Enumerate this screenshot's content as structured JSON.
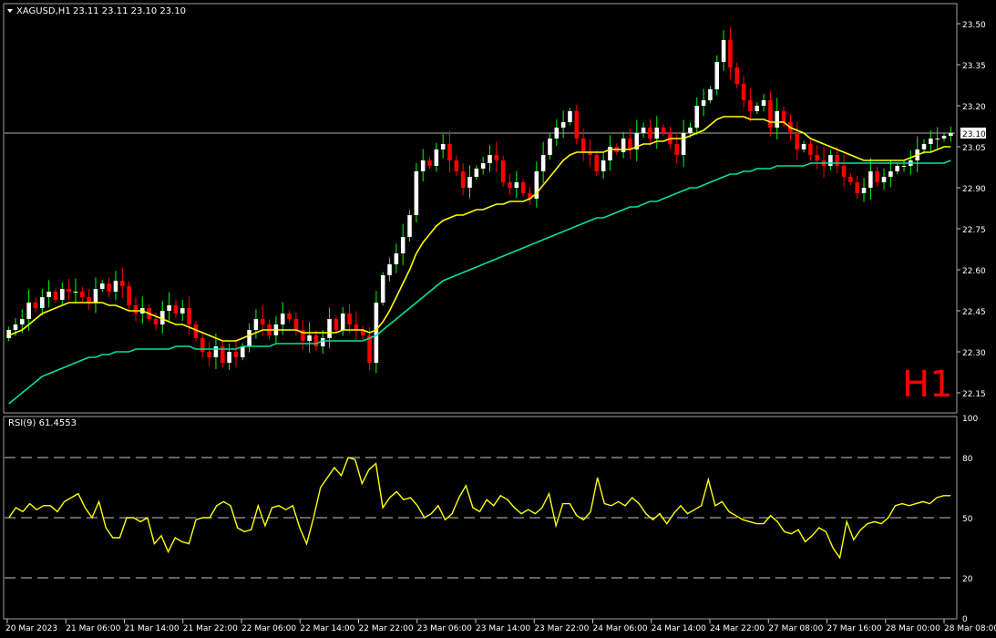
{
  "header": {
    "symbol": "XAGUSD,H1",
    "ohlc": "23.11 23.11 23.10 23.10",
    "timeframe_badge": "H1"
  },
  "rsi_panel": {
    "label": "RSI(9) 61.4553"
  },
  "colors": {
    "background": "#000000",
    "bull_candle": "#ffffff",
    "bear_candle": "#ff0000",
    "wick_bull": "#00ff00",
    "wick_bear": "#ff0000",
    "ma_fast": "#ffff00",
    "ma_slow": "#00e0a0",
    "rsi_line": "#ffff00",
    "axis": "#c0c0c0",
    "badge": "#ff0000"
  },
  "chart_data": [
    {
      "type": "candlestick",
      "title": "XAGUSD,H1",
      "price_current": "23.10",
      "ylim": [
        22.08,
        23.57
      ],
      "y_ticks": [
        "23.50",
        "23.35",
        "23.20",
        "23.05",
        "22.90",
        "22.75",
        "22.60",
        "22.45",
        "22.30",
        "22.15"
      ],
      "y_tick_values": [
        23.5,
        23.35,
        23.2,
        23.05,
        22.9,
        22.75,
        22.6,
        22.45,
        22.3,
        22.15
      ],
      "x_ticks": [
        "20 Mar 2023",
        "21 Mar 06:00",
        "21 Mar 14:00",
        "21 Mar 22:00",
        "22 Mar 06:00",
        "22 Mar 14:00",
        "22 Mar 22:00",
        "23 Mar 06:00",
        "23 Mar 14:00",
        "23 Mar 22:00",
        "24 Mar 06:00",
        "24 Mar 14:00",
        "24 Mar 22:00",
        "27 Mar 08:00",
        "27 Mar 16:00",
        "28 Mar 00:00",
        "28 Mar 08:00"
      ],
      "close_series": [
        22.38,
        22.4,
        22.42,
        22.48,
        22.46,
        22.5,
        22.52,
        22.49,
        22.53,
        22.52,
        22.52,
        22.5,
        22.48,
        22.53,
        22.55,
        22.52,
        22.56,
        22.54,
        22.47,
        22.44,
        22.46,
        22.42,
        22.4,
        22.45,
        22.47,
        22.44,
        22.46,
        22.4,
        22.35,
        22.3,
        22.28,
        22.32,
        22.26,
        22.3,
        22.28,
        22.32,
        22.38,
        22.42,
        22.4,
        22.36,
        22.4,
        22.44,
        22.42,
        22.38,
        22.34,
        22.36,
        22.32,
        22.35,
        22.42,
        22.38,
        22.44,
        22.4,
        22.38,
        22.36,
        22.26,
        22.48,
        22.58,
        22.62,
        22.66,
        22.72,
        22.8,
        22.96,
        23.0,
        22.98,
        23.04,
        23.06,
        23.0,
        22.96,
        22.9,
        22.94,
        22.97,
        22.99,
        23.02,
        23.0,
        22.92,
        22.9,
        22.92,
        22.88,
        22.86,
        22.96,
        23.02,
        23.08,
        23.12,
        23.14,
        23.18,
        23.08,
        23.03,
        23.02,
        22.96,
        23.0,
        23.05,
        23.03,
        23.08,
        23.04,
        23.1,
        23.12,
        23.08,
        23.12,
        23.1,
        23.06,
        23.02,
        23.1,
        23.12,
        23.2,
        23.22,
        23.26,
        23.36,
        23.44,
        23.34,
        23.28,
        23.22,
        23.18,
        23.2,
        23.22,
        23.12,
        23.18,
        23.14,
        23.1,
        23.04,
        23.06,
        23.02,
        23.0,
        22.98,
        23.02,
        22.98,
        22.94,
        22.92,
        22.88,
        22.9,
        22.96,
        22.92,
        22.94,
        22.96,
        22.98,
        22.98,
        23.0,
        23.04,
        23.06,
        23.08,
        23.08,
        23.09,
        23.1
      ],
      "ma_fast_series": [
        22.36,
        22.37,
        22.38,
        22.4,
        22.42,
        22.44,
        22.45,
        22.46,
        22.47,
        22.48,
        22.48,
        22.48,
        22.48,
        22.48,
        22.48,
        22.47,
        22.47,
        22.46,
        22.45,
        22.45,
        22.45,
        22.44,
        22.43,
        22.42,
        22.41,
        22.4,
        22.4,
        22.39,
        22.38,
        22.37,
        22.36,
        22.35,
        22.34,
        22.34,
        22.34,
        22.35,
        22.36,
        22.37,
        22.38,
        22.38,
        22.38,
        22.38,
        22.38,
        22.38,
        22.37,
        22.37,
        22.37,
        22.37,
        22.37,
        22.37,
        22.38,
        22.38,
        22.38,
        22.38,
        22.37,
        22.38,
        22.41,
        22.45,
        22.5,
        22.55,
        22.6,
        22.66,
        22.7,
        22.73,
        22.76,
        22.78,
        22.79,
        22.8,
        22.8,
        22.81,
        22.82,
        22.82,
        22.83,
        22.84,
        22.84,
        22.85,
        22.85,
        22.85,
        22.86,
        22.88,
        22.91,
        22.94,
        22.97,
        23.0,
        23.02,
        23.03,
        23.03,
        23.03,
        23.03,
        23.03,
        23.04,
        23.04,
        23.04,
        23.04,
        23.05,
        23.06,
        23.06,
        23.07,
        23.07,
        23.08,
        23.08,
        23.08,
        23.09,
        23.1,
        23.11,
        23.13,
        23.15,
        23.16,
        23.16,
        23.16,
        23.16,
        23.15,
        23.15,
        23.15,
        23.14,
        23.14,
        23.14,
        23.12,
        23.11,
        23.1,
        23.08,
        23.07,
        23.06,
        23.05,
        23.04,
        23.03,
        23.02,
        23.01,
        23.0,
        23.0,
        23.0,
        23.0,
        23.0,
        23.0,
        23.0,
        23.01,
        23.02,
        23.03,
        23.03,
        23.04,
        23.05,
        23.05
      ],
      "ma_slow_series": [
        22.11,
        22.13,
        22.15,
        22.17,
        22.19,
        22.21,
        22.22,
        22.23,
        22.24,
        22.25,
        22.26,
        22.27,
        22.28,
        22.28,
        22.29,
        22.29,
        22.3,
        22.3,
        22.3,
        22.31,
        22.31,
        22.31,
        22.31,
        22.31,
        22.31,
        22.32,
        22.32,
        22.32,
        22.31,
        22.31,
        22.31,
        22.31,
        22.31,
        22.31,
        22.31,
        22.32,
        22.32,
        22.32,
        22.32,
        22.32,
        22.33,
        22.33,
        22.33,
        22.33,
        22.33,
        22.33,
        22.33,
        22.34,
        22.34,
        22.34,
        22.34,
        22.34,
        22.34,
        22.34,
        22.35,
        22.36,
        22.38,
        22.4,
        22.42,
        22.44,
        22.46,
        22.48,
        22.5,
        22.52,
        22.54,
        22.56,
        22.57,
        22.58,
        22.59,
        22.6,
        22.61,
        22.62,
        22.63,
        22.64,
        22.65,
        22.66,
        22.67,
        22.68,
        22.69,
        22.7,
        22.71,
        22.72,
        22.73,
        22.74,
        22.75,
        22.76,
        22.77,
        22.78,
        22.79,
        22.79,
        22.8,
        22.81,
        22.82,
        22.83,
        22.83,
        22.84,
        22.85,
        22.85,
        22.86,
        22.87,
        22.88,
        22.89,
        22.9,
        22.9,
        22.91,
        22.92,
        22.93,
        22.94,
        22.95,
        22.95,
        22.96,
        22.96,
        22.97,
        22.97,
        22.97,
        22.98,
        22.98,
        22.98,
        22.98,
        22.98,
        22.99,
        22.99,
        22.99,
        22.99,
        22.99,
        22.99,
        22.99,
        22.99,
        22.99,
        22.99,
        22.99,
        22.99,
        22.99,
        22.99,
        22.99,
        22.99,
        22.99,
        22.99,
        22.99,
        22.99,
        22.99,
        23.0
      ]
    },
    {
      "type": "line",
      "title": "RSI(9) 61.4553",
      "ylim": [
        0,
        100
      ],
      "y_ticks": [
        "100",
        "80",
        "50",
        "20",
        "0"
      ],
      "y_tick_values": [
        100,
        80,
        50,
        20,
        0
      ],
      "levels": [
        80,
        50,
        20
      ],
      "series": [
        {
          "values": [
            50,
            55,
            53,
            57,
            54,
            56,
            56,
            53,
            58,
            60,
            62,
            55,
            50,
            58,
            45,
            40,
            40,
            50,
            50,
            48,
            50,
            37,
            41,
            33,
            40,
            38,
            37,
            49,
            50,
            50,
            56,
            58,
            56,
            45,
            43,
            44,
            56,
            46,
            55,
            56,
            54,
            56,
            45,
            37,
            50,
            65,
            70,
            75,
            71,
            80,
            79,
            67,
            74,
            77,
            55,
            60,
            63,
            59,
            60,
            56,
            50,
            52,
            56,
            49,
            52,
            60,
            66,
            55,
            53,
            59,
            56,
            61,
            59,
            55,
            52,
            54,
            52,
            55,
            62,
            46,
            57,
            57,
            51,
            49,
            53,
            70,
            57,
            56,
            58,
            56,
            60,
            57,
            52,
            49,
            52,
            47,
            52,
            56,
            52,
            54,
            56,
            69,
            56,
            58,
            53,
            51,
            49,
            48,
            47,
            47,
            51,
            48,
            43,
            42,
            44,
            38,
            41,
            45,
            43,
            35,
            30,
            48,
            39,
            44,
            47,
            48,
            47,
            50,
            56,
            57,
            56,
            57,
            58,
            57,
            60,
            61,
            61
          ]
        }
      ]
    }
  ]
}
